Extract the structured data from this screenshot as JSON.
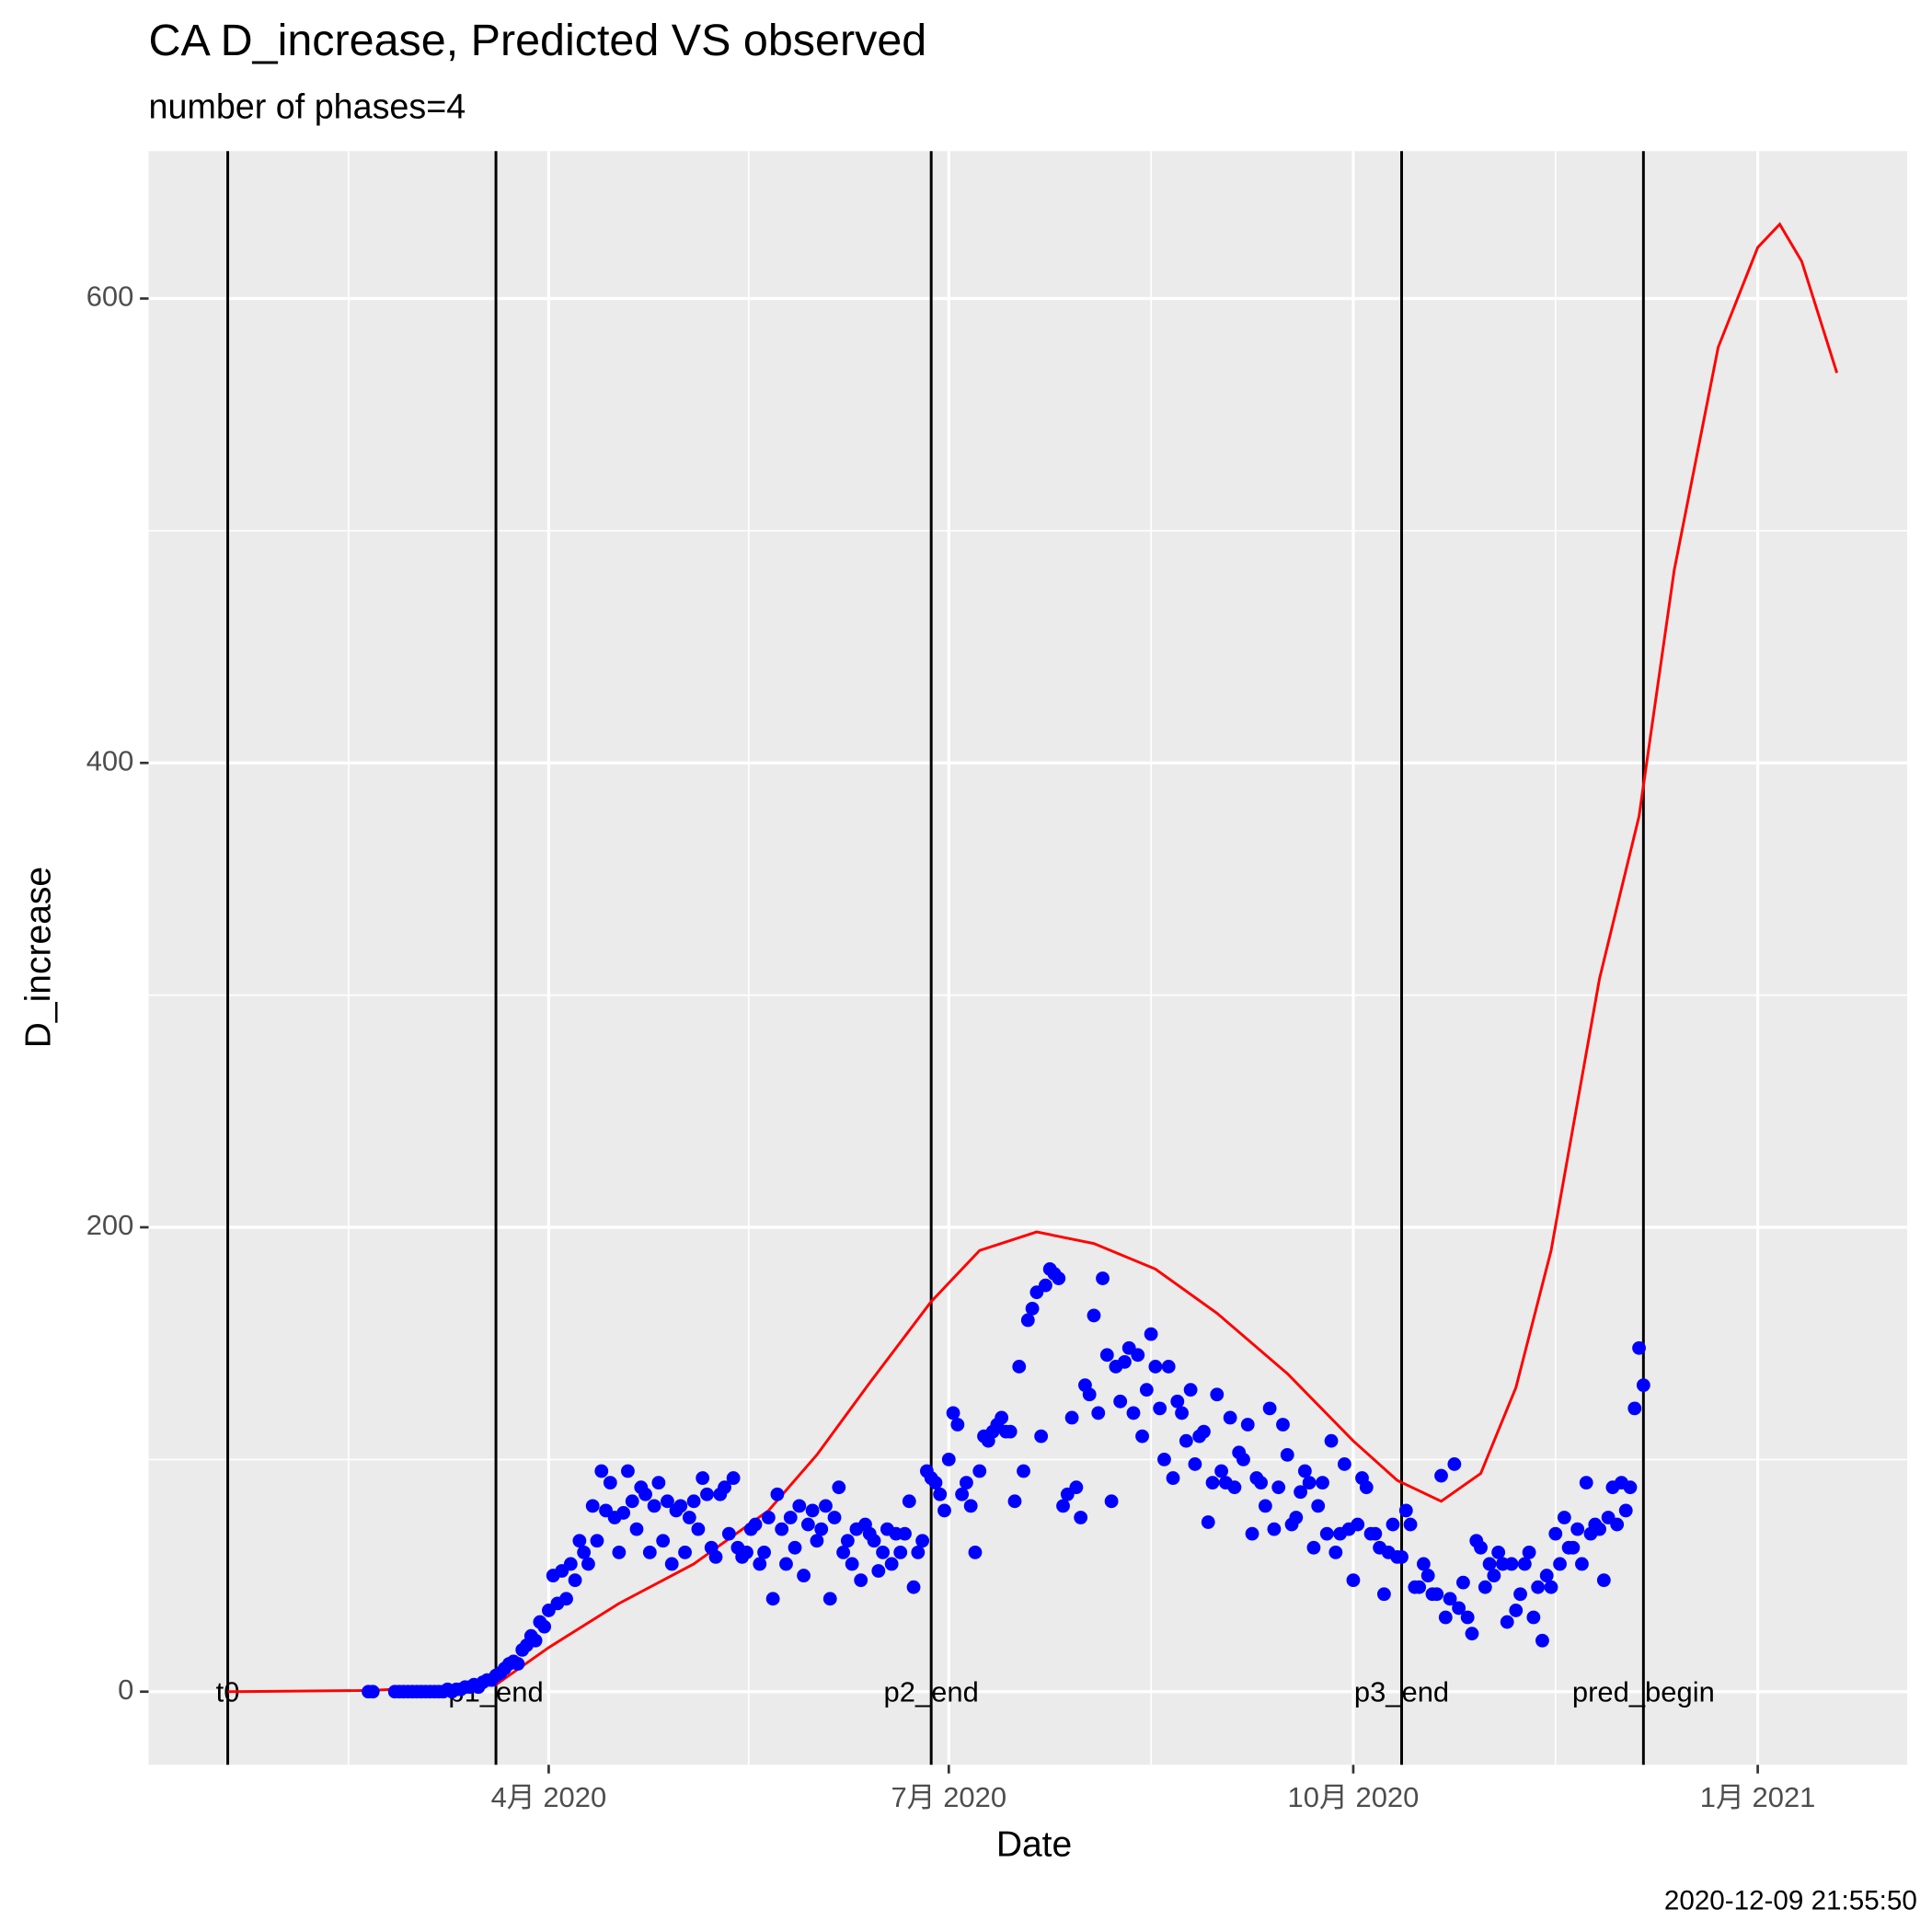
{
  "chart_data": {
    "type": "scatter",
    "title": "CA D_increase, Predicted VS observed",
    "subtitle": "number of phases=4",
    "x_label": "Date",
    "y_label": "D_increase",
    "caption": "2020-12-09 21:55:50",
    "xlim": [
      "2020-01-01",
      "2021-02-04"
    ],
    "ylim": [
      -31.5,
      663.5
    ],
    "xticks": [
      {
        "value": "2020-04-01",
        "label": "4月 2020"
      },
      {
        "value": "2020-07-01",
        "label": "7月 2020"
      },
      {
        "value": "2020-10-01",
        "label": "10月 2020"
      },
      {
        "value": "2021-01-01",
        "label": "1月 2021"
      }
    ],
    "yticks": [
      0,
      200,
      400,
      600
    ],
    "grid": true,
    "vlines": [
      {
        "x": "2020-01-19",
        "label": "t0"
      },
      {
        "x": "2020-03-20",
        "label": "p1_end"
      },
      {
        "x": "2020-06-27",
        "label": "p2_end"
      },
      {
        "x": "2020-10-12",
        "label": "p3_end"
      },
      {
        "x": "2020-12-06",
        "label": "pred_begin"
      }
    ],
    "line": {
      "color": "red",
      "x": [
        "2020-01-19",
        "2020-02-20",
        "2020-03-20",
        "2020-04-01",
        "2020-04-17",
        "2020-05-04",
        "2020-05-21",
        "2020-06-01",
        "2020-06-13",
        "2020-06-27",
        "2020-07-08",
        "2020-07-21",
        "2020-08-03",
        "2020-08-17",
        "2020-08-31",
        "2020-09-16",
        "2020-10-01",
        "2020-10-11",
        "2020-10-21",
        "2020-10-30",
        "2020-11-07",
        "2020-11-15",
        "2020-11-26",
        "2020-12-05",
        "2020-12-13",
        "2020-12-23",
        "2021-01-01",
        "2021-01-06",
        "2021-01-11",
        "2021-01-19"
      ],
      "values": [
        0,
        0.5,
        3,
        19,
        38,
        55,
        78,
        102,
        133,
        168,
        190,
        198,
        193,
        182,
        163,
        137,
        108,
        91,
        82,
        94,
        131,
        190,
        307,
        377,
        483,
        579,
        622,
        632,
        616,
        568
      ]
    },
    "points": {
      "color": "blue",
      "x": [
        "2020-02-20",
        "2020-02-21",
        "2020-02-26",
        "2020-02-27",
        "2020-02-28",
        "2020-02-29",
        "2020-03-01",
        "2020-03-02",
        "2020-03-03",
        "2020-03-04",
        "2020-03-05",
        "2020-03-06",
        "2020-03-07",
        "2020-03-08",
        "2020-03-09",
        "2020-03-10",
        "2020-03-11",
        "2020-03-12",
        "2020-03-13",
        "2020-03-14",
        "2020-03-15",
        "2020-03-16",
        "2020-03-17",
        "2020-03-18",
        "2020-03-19",
        "2020-03-20",
        "2020-03-21",
        "2020-03-22",
        "2020-03-23",
        "2020-03-24",
        "2020-03-25",
        "2020-03-26",
        "2020-03-27",
        "2020-03-28",
        "2020-03-29",
        "2020-03-30",
        "2020-03-31",
        "2020-04-01",
        "2020-04-02",
        "2020-04-03",
        "2020-04-04",
        "2020-04-05",
        "2020-04-06",
        "2020-04-07",
        "2020-04-08",
        "2020-04-09",
        "2020-04-10",
        "2020-04-11",
        "2020-04-12",
        "2020-04-13",
        "2020-04-14",
        "2020-04-15",
        "2020-04-16",
        "2020-04-17",
        "2020-04-18",
        "2020-04-19",
        "2020-04-20",
        "2020-04-21",
        "2020-04-22",
        "2020-04-23",
        "2020-04-24",
        "2020-04-25",
        "2020-04-26",
        "2020-04-27",
        "2020-04-28",
        "2020-04-29",
        "2020-04-30",
        "2020-05-01",
        "2020-05-02",
        "2020-05-03",
        "2020-05-04",
        "2020-05-05",
        "2020-05-06",
        "2020-05-07",
        "2020-05-08",
        "2020-05-09",
        "2020-05-10",
        "2020-05-11",
        "2020-05-12",
        "2020-05-13",
        "2020-05-14",
        "2020-05-15",
        "2020-05-16",
        "2020-05-17",
        "2020-05-18",
        "2020-05-19",
        "2020-05-20",
        "2020-05-21",
        "2020-05-22",
        "2020-05-23",
        "2020-05-24",
        "2020-05-25",
        "2020-05-26",
        "2020-05-27",
        "2020-05-28",
        "2020-05-29",
        "2020-05-30",
        "2020-05-31",
        "2020-06-01",
        "2020-06-02",
        "2020-06-03",
        "2020-06-04",
        "2020-06-05",
        "2020-06-06",
        "2020-06-07",
        "2020-06-08",
        "2020-06-09",
        "2020-06-10",
        "2020-06-11",
        "2020-06-12",
        "2020-06-13",
        "2020-06-14",
        "2020-06-15",
        "2020-06-16",
        "2020-06-17",
        "2020-06-18",
        "2020-06-19",
        "2020-06-20",
        "2020-06-21",
        "2020-06-22",
        "2020-06-23",
        "2020-06-24",
        "2020-06-25",
        "2020-06-26",
        "2020-06-27",
        "2020-06-28",
        "2020-06-29",
        "2020-06-30",
        "2020-07-01",
        "2020-07-02",
        "2020-07-03",
        "2020-07-04",
        "2020-07-05",
        "2020-07-06",
        "2020-07-07",
        "2020-07-08",
        "2020-07-09",
        "2020-07-10",
        "2020-07-11",
        "2020-07-12",
        "2020-07-13",
        "2020-07-14",
        "2020-07-15",
        "2020-07-16",
        "2020-07-17",
        "2020-07-18",
        "2020-07-19",
        "2020-07-20",
        "2020-07-21",
        "2020-07-22",
        "2020-07-23",
        "2020-07-24",
        "2020-07-25",
        "2020-07-26",
        "2020-07-27",
        "2020-07-28",
        "2020-07-29",
        "2020-07-30",
        "2020-07-31",
        "2020-08-01",
        "2020-08-02",
        "2020-08-03",
        "2020-08-04",
        "2020-08-05",
        "2020-08-06",
        "2020-08-07",
        "2020-08-08",
        "2020-08-09",
        "2020-08-10",
        "2020-08-11",
        "2020-08-12",
        "2020-08-13",
        "2020-08-14",
        "2020-08-15",
        "2020-08-16",
        "2020-08-17",
        "2020-08-18",
        "2020-08-19",
        "2020-08-20",
        "2020-08-21",
        "2020-08-22",
        "2020-08-23",
        "2020-08-24",
        "2020-08-25",
        "2020-08-26",
        "2020-08-27",
        "2020-08-28",
        "2020-08-29",
        "2020-08-30",
        "2020-08-31",
        "2020-09-01",
        "2020-09-02",
        "2020-09-03",
        "2020-09-04",
        "2020-09-05",
        "2020-09-06",
        "2020-09-07",
        "2020-09-08",
        "2020-09-09",
        "2020-09-10",
        "2020-09-11",
        "2020-09-12",
        "2020-09-13",
        "2020-09-14",
        "2020-09-15",
        "2020-09-16",
        "2020-09-17",
        "2020-09-18",
        "2020-09-19",
        "2020-09-20",
        "2020-09-21",
        "2020-09-22",
        "2020-09-23",
        "2020-09-24",
        "2020-09-25",
        "2020-09-26",
        "2020-09-27",
        "2020-09-28",
        "2020-09-29",
        "2020-09-30",
        "2020-10-01",
        "2020-10-02",
        "2020-10-03",
        "2020-10-04",
        "2020-10-05",
        "2020-10-06",
        "2020-10-07",
        "2020-10-08",
        "2020-10-09",
        "2020-10-10",
        "2020-10-11",
        "2020-10-12",
        "2020-10-13",
        "2020-10-14",
        "2020-10-15",
        "2020-10-16",
        "2020-10-17",
        "2020-10-18",
        "2020-10-19",
        "2020-10-20",
        "2020-10-21",
        "2020-10-22",
        "2020-10-23",
        "2020-10-24",
        "2020-10-25",
        "2020-10-26",
        "2020-10-27",
        "2020-10-28",
        "2020-10-29",
        "2020-10-30",
        "2020-10-31",
        "2020-11-01",
        "2020-11-02",
        "2020-11-03",
        "2020-11-04",
        "2020-11-05",
        "2020-11-06",
        "2020-11-07",
        "2020-11-08",
        "2020-11-09",
        "2020-11-10",
        "2020-11-11",
        "2020-11-12",
        "2020-11-13",
        "2020-11-14",
        "2020-11-15",
        "2020-11-16",
        "2020-11-17",
        "2020-11-18",
        "2020-11-19",
        "2020-11-20",
        "2020-11-21",
        "2020-11-22",
        "2020-11-23",
        "2020-11-24",
        "2020-11-25",
        "2020-11-26",
        "2020-11-27",
        "2020-11-28",
        "2020-11-29",
        "2020-11-30",
        "2020-12-01",
        "2020-12-02",
        "2020-12-03",
        "2020-12-04",
        "2020-12-05",
        "2020-12-06"
      ],
      "values": [
        0,
        0,
        0,
        0,
        0,
        0,
        0,
        0,
        0,
        0,
        0,
        0,
        0,
        0,
        1,
        0,
        1,
        1,
        2,
        2,
        3,
        2,
        4,
        5,
        5,
        7,
        8,
        10,
        12,
        13,
        12,
        18,
        20,
        24,
        22,
        30,
        28,
        35,
        50,
        38,
        52,
        40,
        55,
        48,
        65,
        60,
        55,
        80,
        65,
        95,
        78,
        90,
        75,
        60,
        77,
        95,
        82,
        70,
        88,
        85,
        60,
        80,
        90,
        65,
        82,
        55,
        78,
        80,
        60,
        75,
        82,
        70,
        92,
        85,
        62,
        58,
        85,
        88,
        68,
        92,
        62,
        58,
        60,
        70,
        72,
        55,
        60,
        75,
        40,
        85,
        70,
        55,
        75,
        62,
        80,
        50,
        72,
        78,
        65,
        70,
        80,
        40,
        75,
        88,
        60,
        65,
        55,
        70,
        48,
        72,
        68,
        65,
        52,
        60,
        70,
        55,
        68,
        60,
        68,
        82,
        45,
        60,
        65,
        95,
        92,
        90,
        85,
        78,
        100,
        120,
        115,
        85,
        90,
        80,
        60,
        95,
        110,
        108,
        112,
        115,
        118,
        112,
        112,
        82,
        140,
        95,
        160,
        165,
        172,
        110,
        175,
        182,
        180,
        178,
        80,
        85,
        118,
        88,
        75,
        132,
        128,
        162,
        120,
        178,
        145,
        82,
        140,
        125,
        142,
        148,
        120,
        145,
        110,
        130,
        154,
        140,
        122,
        100,
        140,
        92,
        125,
        120,
        108,
        130,
        98,
        110,
        112,
        73,
        90,
        128,
        95,
        90,
        118,
        88,
        103,
        100,
        115,
        68,
        92,
        90,
        80,
        122,
        70,
        88,
        115,
        102,
        72,
        75,
        86,
        95,
        90,
        62,
        80,
        90,
        68,
        108,
        60,
        68,
        98,
        70,
        48,
        72,
        92,
        88,
        68,
        68,
        62,
        42,
        60,
        72,
        58,
        58,
        78,
        72,
        45,
        45,
        55,
        50,
        42,
        42,
        93,
        32,
        40,
        98,
        36,
        47,
        32,
        25,
        65,
        62,
        45,
        55,
        50,
        60,
        55,
        30,
        55,
        35,
        42,
        55,
        60,
        32,
        45,
        22,
        50,
        45,
        68,
        55,
        75,
        62,
        62,
        70,
        55,
        90,
        68,
        72,
        70,
        48,
        75,
        88,
        72,
        90,
        78,
        88,
        122,
        148,
        132
      ]
    }
  }
}
